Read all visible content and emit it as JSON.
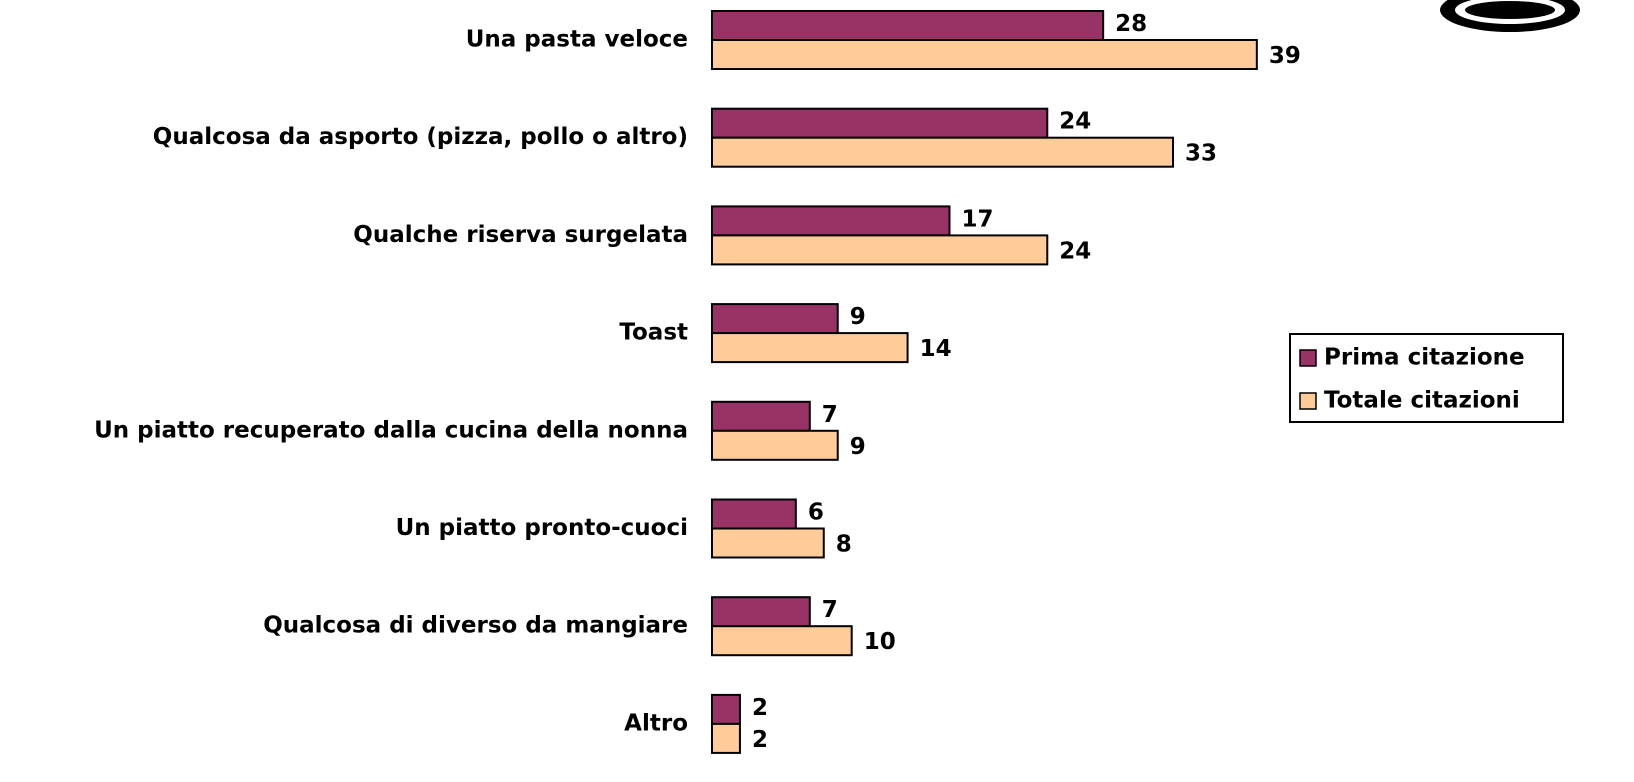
{
  "chart_data": {
    "type": "hbar",
    "categories": [
      "Una pasta veloce",
      "Qualcosa da asporto (pizza, pollo o altro)",
      "Qualche riserva surgelata",
      "Toast",
      "Un piatto recuperato dalla cucina della nonna",
      "Un piatto pronto-cuoci",
      "Qualcosa di diverso da mangiare",
      "Altro"
    ],
    "series": [
      {
        "name": "Prima citazione",
        "color": "#993366",
        "values": [
          28,
          24,
          17,
          9,
          7,
          6,
          7,
          2
        ]
      },
      {
        "name": "Totale citazioni",
        "color": "#FFCC99",
        "values": [
          39,
          33,
          24,
          14,
          9,
          8,
          10,
          2
        ]
      }
    ],
    "legend": "right"
  }
}
